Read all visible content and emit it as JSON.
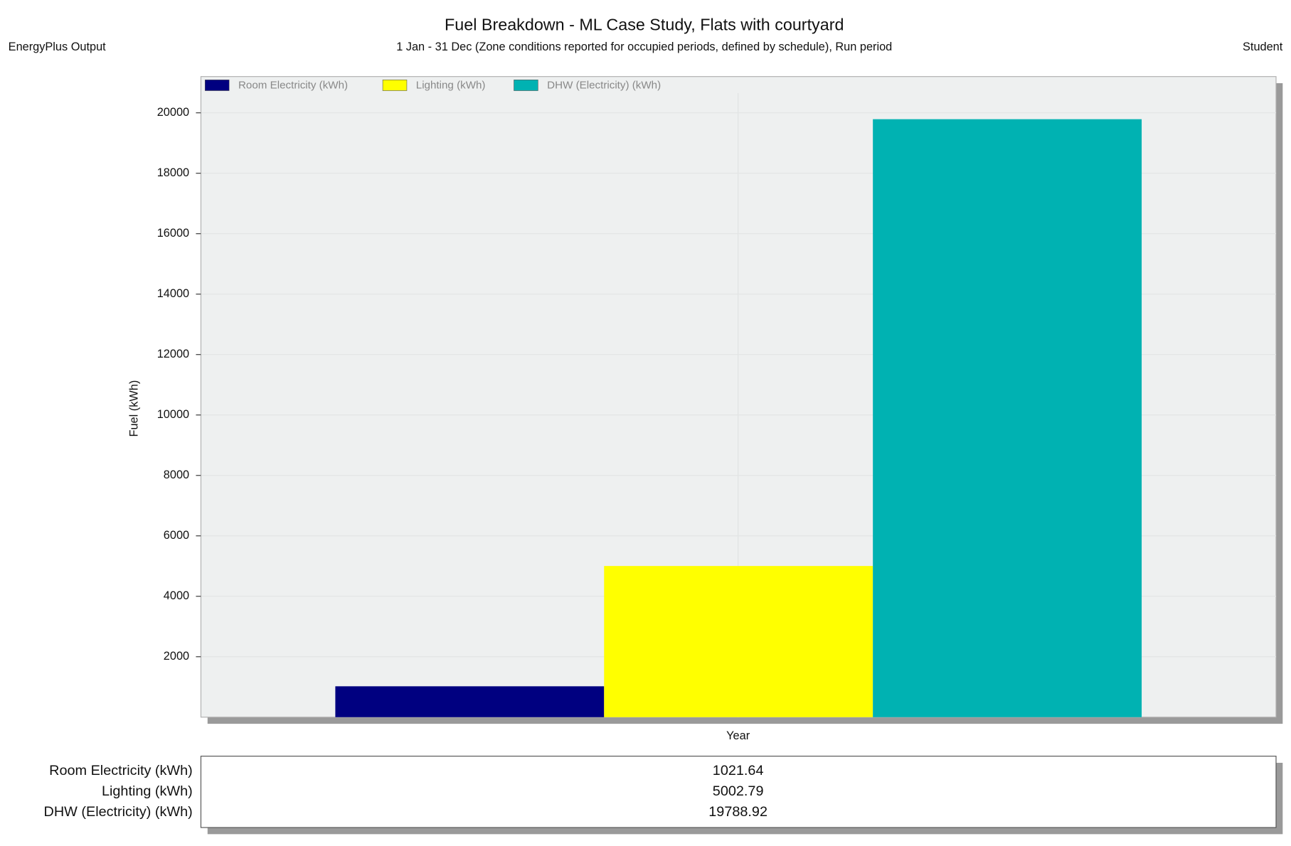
{
  "header": {
    "left": "EnergyPlus Output",
    "right": "Student"
  },
  "chart_data": {
    "type": "bar",
    "title": "Fuel Breakdown - ML Case Study, Flats with courtyard",
    "subtitle": "1 Jan - 31 Dec (Zone conditions reported for occupied periods, defined by schedule), Run period",
    "y_label": "Fuel (kWh)",
    "x_label": "Year",
    "categories": [
      "Year"
    ],
    "series": [
      {
        "name": "Room Electricity (kWh)",
        "color": "#000080",
        "values": [
          1021.64
        ]
      },
      {
        "name": "Lighting (kWh)",
        "color": "#ffff00",
        "values": [
          5002.79
        ]
      },
      {
        "name": "DHW (Electricity) (kWh)",
        "color": "#00b2b2",
        "values": [
          19788.92
        ]
      }
    ],
    "ylim": [
      0,
      21200
    ],
    "yticks": [
      2000,
      4000,
      6000,
      8000,
      10000,
      12000,
      14000,
      16000,
      18000,
      20000
    ],
    "grid": true,
    "legend": "top-left"
  }
}
